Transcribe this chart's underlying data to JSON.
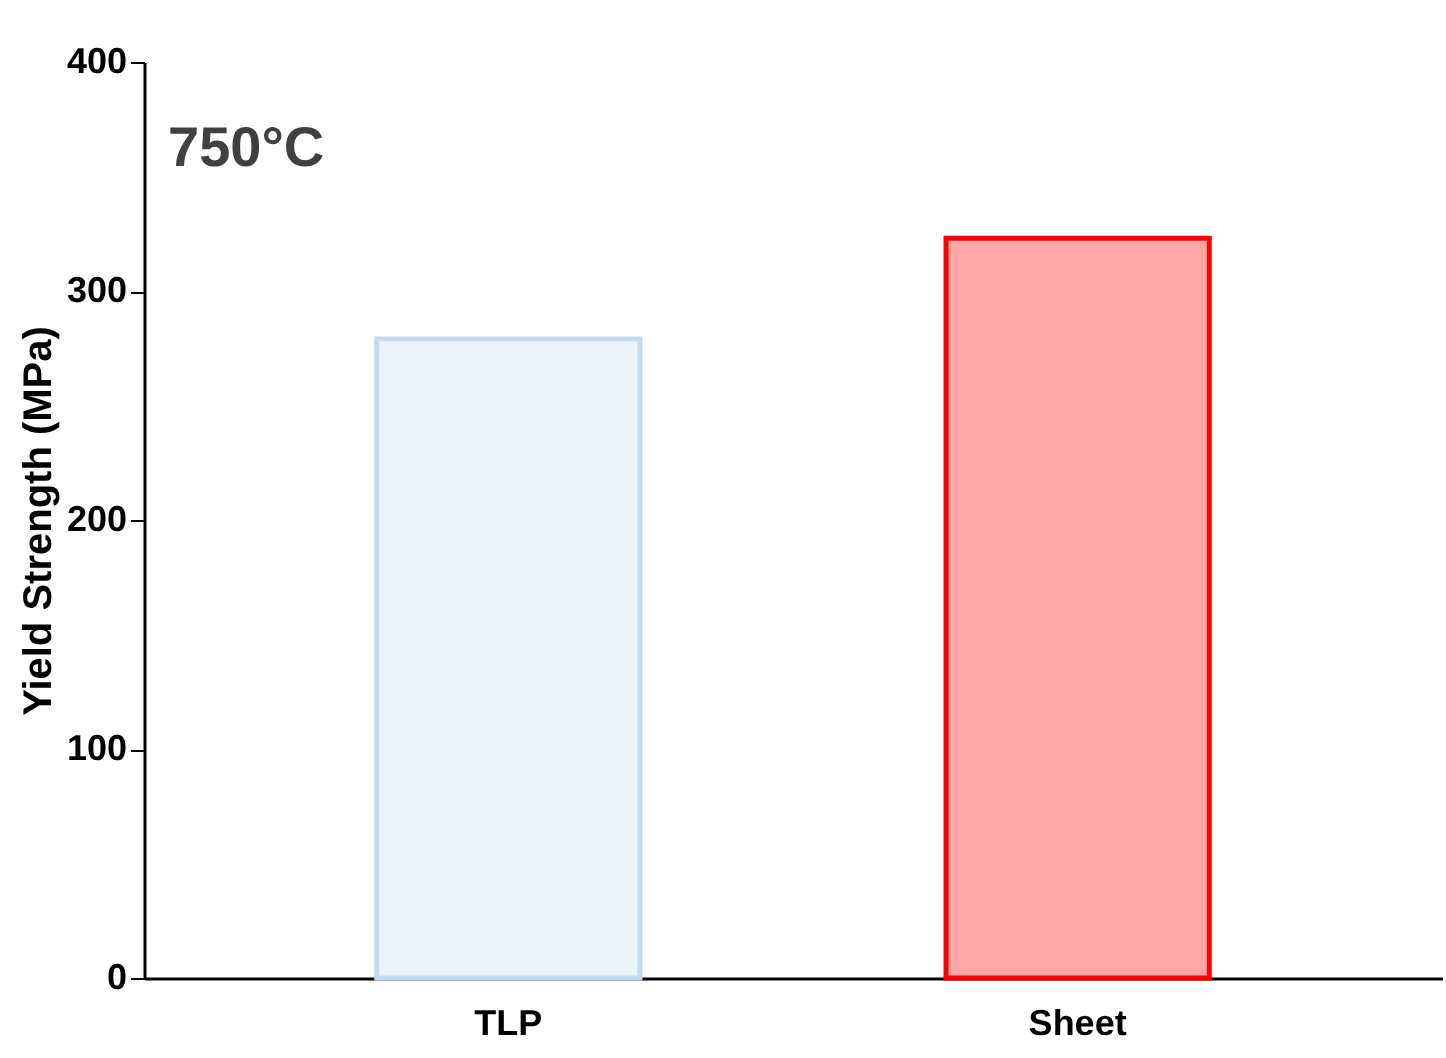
{
  "chart_data": {
    "type": "bar",
    "ylabel": "Yield Strength (MPa)",
    "categories": [
      "TLP",
      "Sheet"
    ],
    "values": [
      279,
      323
    ],
    "colors": [
      "#c5d9f1",
      "#ff0000"
    ],
    "ylim": [
      0,
      400
    ],
    "yticks": [
      0,
      100,
      200,
      300,
      400
    ],
    "grid": false,
    "annotations": [
      "750°C"
    ]
  }
}
